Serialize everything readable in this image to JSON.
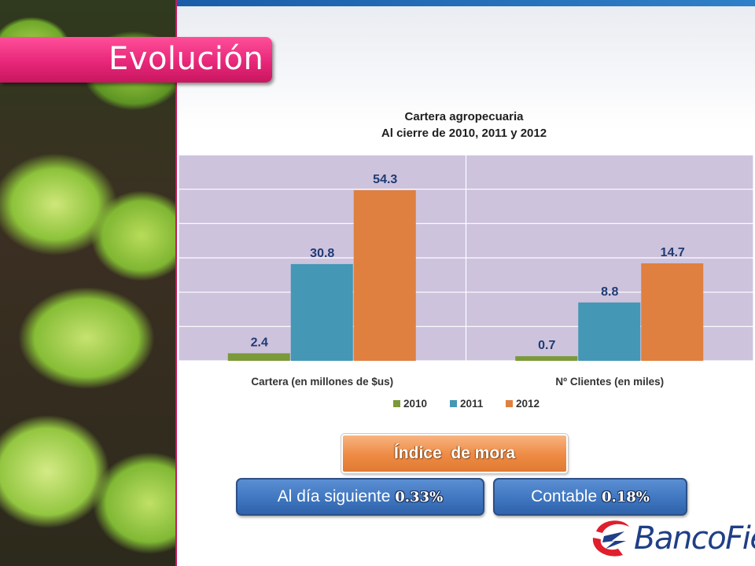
{
  "slide": {
    "title": "Evolución"
  },
  "chart_data": {
    "type": "bar",
    "title": "Cartera agropecuaria",
    "subtitle": "Al cierre de 2010, 2011 y 2012",
    "categories": [
      "Cartera (en millones de $us)",
      "Nº Clientes (en miles)"
    ],
    "series": [
      {
        "name": "2010",
        "color": "#7a9a3a",
        "values": [
          2.4,
          0.7
        ]
      },
      {
        "name": "2011",
        "color": "#4497b5",
        "values": [
          30.8,
          8.8
        ]
      },
      {
        "name": "2012",
        "color": "#df8040",
        "values": [
          54.3,
          14.7
        ]
      }
    ],
    "value_labels": [
      [
        "2.4",
        "0.7"
      ],
      [
        "30.8",
        "8.8"
      ],
      [
        "54.3",
        "14.7"
      ]
    ],
    "plot_background": "#cdc3dd",
    "gridlines": true,
    "legend_position": "bottom"
  },
  "mora": {
    "title": "Índice  de mora",
    "items": [
      {
        "label": "Al día siguiente ",
        "value": "0.33%"
      },
      {
        "label": "Contable ",
        "value": "0.18%"
      }
    ]
  },
  "logo": {
    "text": "BancoFie"
  },
  "colors": {
    "title_tag": "#e8277a",
    "top_bar": "#1a5ca8",
    "mora_tag": "#ee8a43",
    "pill": "#3f76c0",
    "logo_red": "#e01e2c",
    "logo_blue": "#1f3f86"
  }
}
